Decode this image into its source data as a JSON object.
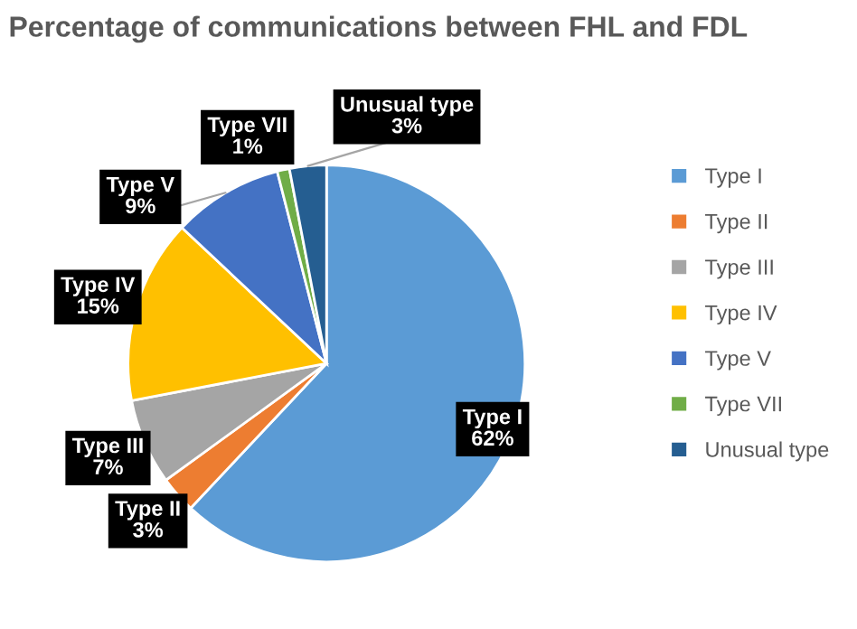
{
  "chart_data": {
    "type": "pie",
    "title": "Percentage of communications between FHL and FDL",
    "categories": [
      "Type I",
      "Type II",
      "Type III",
      "Type IV",
      "Type V",
      "Type VII",
      "Unusual type"
    ],
    "values": [
      62,
      3,
      7,
      15,
      9,
      1,
      3
    ],
    "colors": [
      "#5b9bd5",
      "#ed7d31",
      "#a5a5a5",
      "#ffc000",
      "#4472c4",
      "#70ad47",
      "#255e91"
    ],
    "value_labels": [
      "62%",
      "3%",
      "7%",
      "15%",
      "9%",
      "1%",
      "3%"
    ],
    "legend": "right"
  }
}
